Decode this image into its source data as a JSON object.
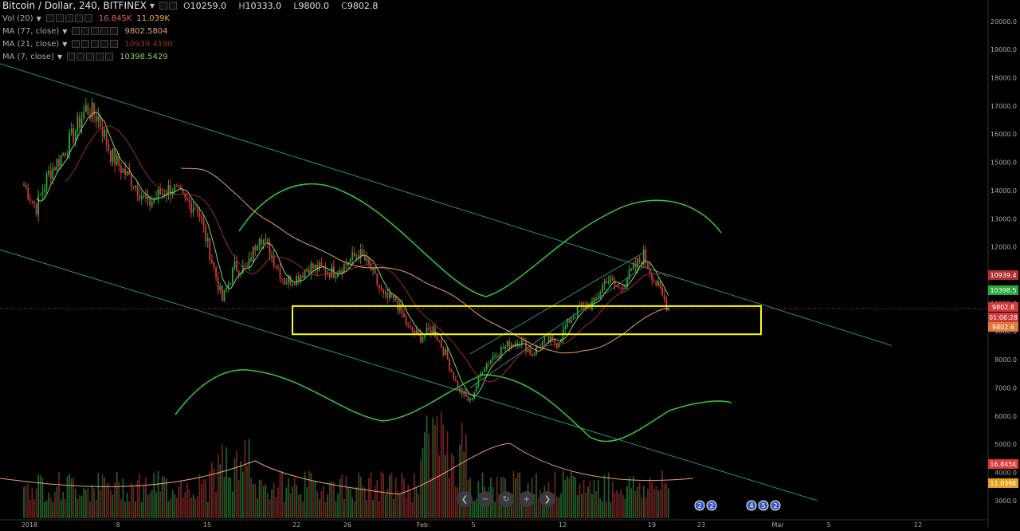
{
  "header": {
    "symbol_title": "Bitcoin / Dollar, 240, BITFINEX",
    "ohlc": {
      "o_label": "O",
      "o": "10259.0",
      "h_label": "H",
      "h": "10333.0",
      "l_label": "L",
      "l": "9800.0",
      "c_label": "C",
      "c": "9802.8"
    }
  },
  "indicators": [
    {
      "label": "Vol (20)",
      "values": [
        "16.845K",
        "11.039K"
      ],
      "colors": [
        "#e06060",
        "#f0b030"
      ]
    },
    {
      "label": "MA (77, close)",
      "values": [
        "9802.5804"
      ],
      "colors": [
        "#e8a070"
      ]
    },
    {
      "label": "MA (21, close)",
      "values": [
        "10939.4190"
      ],
      "colors": [
        "#a02c2c"
      ]
    },
    {
      "label": "MA (7, close)",
      "values": [
        "10398.5429"
      ],
      "colors": [
        "#7fd46b"
      ]
    }
  ],
  "price_axis": {
    "ticks": [
      "20000.0",
      "19000.0",
      "18000.0",
      "17000.0",
      "16000.0",
      "15000.0",
      "14000.0",
      "13000.0",
      "12000.0",
      "11000.0",
      "10000.0",
      "9000.0",
      "8000.0",
      "7000.0",
      "6000.0",
      "5000.0",
      "4000.0",
      "3000.0"
    ],
    "badges": [
      {
        "label": "10939.4",
        "bg": "#b03030"
      },
      {
        "label": "10398.5",
        "bg": "#27a83a"
      },
      {
        "label": "9802.8",
        "bg": "#d03a3a"
      },
      {
        "label": "01:06:28",
        "bg": "#d03a3a"
      },
      {
        "label": "9802.6",
        "bg": "#e07a3a"
      },
      {
        "label": "16.845K",
        "bg": "#e03a3a"
      },
      {
        "label": "11.039K",
        "bg": "#e6a020"
      }
    ]
  },
  "time_axis": {
    "labels": [
      "2018",
      "8",
      "15",
      "22",
      "26",
      "Feb",
      "5",
      "12",
      "19",
      "23",
      "Mar",
      "5",
      "12"
    ]
  },
  "events": [
    {
      "label": "2"
    },
    {
      "label": "2"
    },
    {
      "label": "4"
    },
    {
      "label": "5"
    },
    {
      "label": "2"
    }
  ],
  "chart_data": {
    "type": "candlestick",
    "symbol": "Bitcoin / Dollar",
    "interval": "240",
    "exchange": "BITFINEX",
    "ylim": [
      2600,
      20700
    ],
    "x_range": [
      "2018-01-01",
      "2018-03-14"
    ],
    "anchors": [
      {
        "d": "2018-01-01",
        "p": 14200
      },
      {
        "d": "2018-01-02",
        "p": 13400
      },
      {
        "d": "2018-01-03",
        "p": 14600
      },
      {
        "d": "2018-01-04",
        "p": 15200
      },
      {
        "d": "2018-01-05",
        "p": 16000
      },
      {
        "d": "2018-01-06",
        "p": 16900
      },
      {
        "d": "2018-01-07",
        "p": 16600
      },
      {
        "d": "2018-01-08",
        "p": 15300
      },
      {
        "d": "2018-01-09",
        "p": 14700
      },
      {
        "d": "2018-01-10",
        "p": 14200
      },
      {
        "d": "2018-01-11",
        "p": 13500
      },
      {
        "d": "2018-01-12",
        "p": 13900
      },
      {
        "d": "2018-01-13",
        "p": 14100
      },
      {
        "d": "2018-01-14",
        "p": 13600
      },
      {
        "d": "2018-01-15",
        "p": 13400
      },
      {
        "d": "2018-01-16",
        "p": 11800
      },
      {
        "d": "2018-01-17",
        "p": 10100
      },
      {
        "d": "2018-01-18",
        "p": 11300
      },
      {
        "d": "2018-01-19",
        "p": 11200
      },
      {
        "d": "2018-01-20",
        "p": 12500
      },
      {
        "d": "2018-01-21",
        "p": 11700
      },
      {
        "d": "2018-01-22",
        "p": 10800
      },
      {
        "d": "2018-01-23",
        "p": 10900
      },
      {
        "d": "2018-01-24",
        "p": 11300
      },
      {
        "d": "2018-01-25",
        "p": 11200
      },
      {
        "d": "2018-01-26",
        "p": 11100
      },
      {
        "d": "2018-01-27",
        "p": 11400
      },
      {
        "d": "2018-01-28",
        "p": 11800
      },
      {
        "d": "2018-01-29",
        "p": 11200
      },
      {
        "d": "2018-01-30",
        "p": 10200
      },
      {
        "d": "2018-01-31",
        "p": 10100
      },
      {
        "d": "2018-02-01",
        "p": 9100
      },
      {
        "d": "2018-02-02",
        "p": 8800
      },
      {
        "d": "2018-02-03",
        "p": 9100
      },
      {
        "d": "2018-02-04",
        "p": 8200
      },
      {
        "d": "2018-02-05",
        "p": 7000
      },
      {
        "d": "2018-02-06",
        "p": 6500
      },
      {
        "d": "2018-02-07",
        "p": 7700
      },
      {
        "d": "2018-02-08",
        "p": 8200
      },
      {
        "d": "2018-02-09",
        "p": 8500
      },
      {
        "d": "2018-02-10",
        "p": 8700
      },
      {
        "d": "2018-02-11",
        "p": 8200
      },
      {
        "d": "2018-02-12",
        "p": 8700
      },
      {
        "d": "2018-02-13",
        "p": 8600
      },
      {
        "d": "2018-02-14",
        "p": 9400
      },
      {
        "d": "2018-02-15",
        "p": 9900
      },
      {
        "d": "2018-02-16",
        "p": 10000
      },
      {
        "d": "2018-02-17",
        "p": 10900
      },
      {
        "d": "2018-02-18",
        "p": 10500
      },
      {
        "d": "2018-02-19",
        "p": 11100
      },
      {
        "d": "2018-02-20",
        "p": 11700
      },
      {
        "d": "2018-02-21",
        "p": 10700
      },
      {
        "d": "2018-02-22",
        "p": 9800
      }
    ],
    "moving_averages": [
      {
        "name": "MA (7, close)",
        "value": 10398.5429,
        "color": "#7fd46b"
      },
      {
        "name": "MA (21, close)",
        "value": 10939.419,
        "color": "#a02c2c"
      },
      {
        "name": "MA (77, close)",
        "value": 9802.5804,
        "color": "#e8a070"
      }
    ],
    "volume": {
      "name": "Vol (20)",
      "last": "16.845K",
      "ma": "11.039K"
    },
    "last_price": 9802.8,
    "support_zone": {
      "from_price": 8900,
      "to_price": 9900,
      "from_date": "2018-01-20",
      "to_date": "2018-02-28",
      "color": "#ffff00"
    },
    "channel_lines": [
      {
        "from": {
          "d": "2018-01-01",
          "p": 18500
        },
        "to": {
          "d": "2018-03-12",
          "p": 8500
        }
      },
      {
        "from": {
          "d": "2018-01-01",
          "p": 11900
        },
        "to": {
          "d": "2018-03-06",
          "p": 3000
        }
      }
    ],
    "rising_lines": [
      {
        "from": {
          "d": "2018-02-06",
          "p": 8200
        },
        "to": {
          "d": "2018-02-20",
          "p": 11800
        }
      },
      {
        "from": {
          "d": "2018-02-06",
          "p": 7000
        },
        "to": {
          "d": "2018-02-20",
          "p": 11300
        }
      }
    ],
    "colors": {
      "up": "#27a83a",
      "down": "#d03a3a",
      "channel": "#2a8f7f",
      "bands": "#35c93a",
      "last_line": "#d03a3a"
    }
  }
}
